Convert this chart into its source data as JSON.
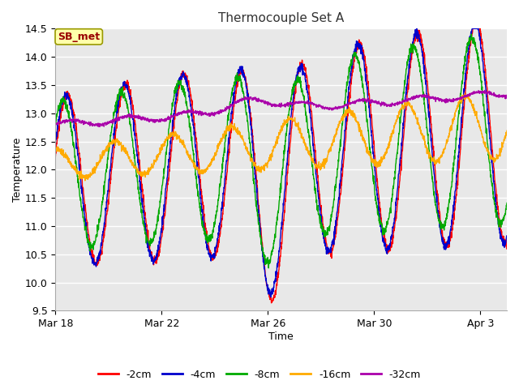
{
  "title": "Thermocouple Set A",
  "xlabel": "Time",
  "ylabel": "Temperature",
  "ylim": [
    9.5,
    14.5
  ],
  "yticks": [
    9.5,
    10.0,
    10.5,
    11.0,
    11.5,
    12.0,
    12.5,
    13.0,
    13.5,
    14.0,
    14.5
  ],
  "xlim": [
    0,
    17
  ],
  "xtick_labels": [
    "Mar 18",
    "Mar 22",
    "Mar 26",
    "Mar 30",
    "Apr 3"
  ],
  "xtick_positions": [
    0,
    4,
    8,
    12,
    16
  ],
  "line_colors": {
    "-2cm": "#ff0000",
    "-4cm": "#0000cc",
    "-8cm": "#00aa00",
    "-16cm": "#ffaa00",
    "-32cm": "#aa00aa"
  },
  "legend_label": "SB_met",
  "fig_bg_color": "#ffffff",
  "plot_bg_color": "#e8e8e8",
  "grid_color": "#ffffff",
  "seed": 12345
}
